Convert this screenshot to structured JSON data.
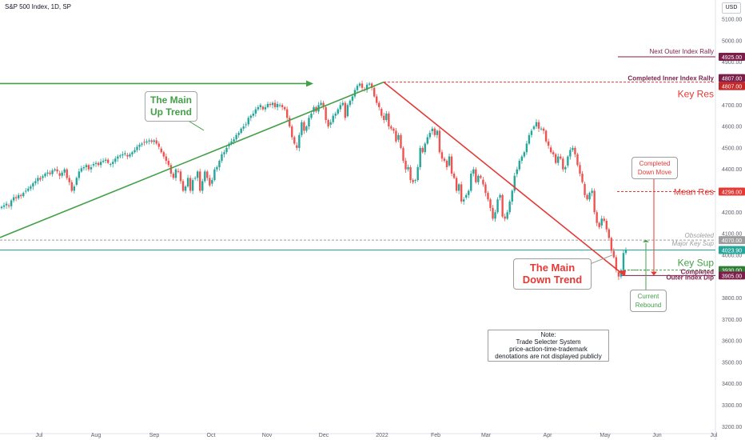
{
  "header": {
    "symbol_line": "S&P 500 Index, 1D, SP",
    "currency": "USD"
  },
  "callouts": {
    "main_up": "The Main\nUp Trend",
    "main_down": "The Main\nDown Trend",
    "completed_down": "Completed\nDown Move",
    "current_rebound": "Current\nRebound",
    "note": "Note:\nTrade Selecter System\nprice-action-time-trademark\ndenotations are not displayed publicly"
  },
  "chart_data": {
    "type": "candlestick",
    "x_tick_labels": [
      "Jul",
      "Aug",
      "Sep",
      "Oct",
      "Nov",
      "Dec",
      "2022",
      "Feb",
      "Mar",
      "Apr",
      "May",
      "Jun",
      "Jul"
    ],
    "y_ticks": [
      3200,
      3300,
      3400,
      3500,
      3600,
      3700,
      3800,
      3900,
      4000,
      4100,
      4200,
      4300,
      4400,
      4500,
      4600,
      4700,
      4800,
      4900,
      5000,
      5100
    ],
    "y_tick_labels": [
      "3200.00",
      "3300.00",
      "3400.00",
      "3500.00",
      "3600.00",
      "3700.00",
      "3800.00",
      "3900.00",
      "4000.00",
      "4100.00",
      "4200.00",
      "4300.00",
      "4400.00",
      "4500.00",
      "4600.00",
      "4700.00",
      "4800.00",
      "4900.00",
      "5000.00",
      "5100.00"
    ],
    "ylim": [
      3175,
      5145
    ],
    "colors": {
      "up": "#26a69a",
      "down": "#ef5350",
      "trend_up": "#43a047",
      "trend_down": "#e53935",
      "res": "#9c1f52",
      "sup": "#43a047"
    },
    "levels": [
      {
        "label": "Next Outer Index Rally",
        "value": 4925.0,
        "tag": "4925.00",
        "color": "#7b1f4a",
        "style": "solid"
      },
      {
        "label": "Completed Inner Index Rally",
        "value": 4807.0,
        "tag": "4807.00",
        "color": "#7b1f4a",
        "style": "dashed"
      },
      {
        "label": "Key Res",
        "value": 4807.0,
        "tag": "4807.00",
        "color": "#e53935",
        "style": "none"
      },
      {
        "label": "Mean Res",
        "value": 4296.0,
        "tag": "4296.00",
        "color": "#e53935",
        "style": "dashed"
      },
      {
        "label": "Obsoleted",
        "value": 4070.0,
        "tag": "4070.00",
        "color": "#9e9e9e",
        "style": "dashed"
      },
      {
        "label": "Major Key Sup",
        "value": 4070.0,
        "tag": "",
        "color": "#9e9e9e",
        "style": "none"
      },
      {
        "label": "",
        "value": 4023.9,
        "tag": "4023.90",
        "color": "#26a69a",
        "style": "solid"
      },
      {
        "label": "Key Sup",
        "value": 3930.0,
        "tag": "3930.00",
        "color": "#43a047",
        "style": "dashed"
      },
      {
        "label": "Completed",
        "value": 3930.0,
        "tag": "",
        "color": "#7b1f4a",
        "style": "none"
      },
      {
        "label": "Outer Index Dip",
        "value": 3905.0,
        "tag": "3905.00",
        "color": "#7b1f4a",
        "style": "solid"
      }
    ],
    "candles_close": [
      4225,
      4232,
      4240,
      4228,
      4255,
      4270,
      4265,
      4280,
      4275,
      4290,
      4300,
      4310,
      4320,
      4335,
      4345,
      4360,
      4352,
      4368,
      4380,
      4385,
      4378,
      4395,
      4400,
      4390,
      4370,
      4385,
      4400,
      4360,
      4340,
      4300,
      4320,
      4360,
      4390,
      4405,
      4410,
      4420,
      4400,
      4410,
      4425,
      4430,
      4420,
      4435,
      4440,
      4445,
      4430,
      4425,
      4435,
      4450,
      4460,
      4465,
      4470,
      4475,
      4460,
      4470,
      4480,
      4490,
      4505,
      4515,
      4520,
      4525,
      4530,
      4535,
      4528,
      4535,
      4520,
      4505,
      4480,
      4460,
      4440,
      4420,
      4380,
      4360,
      4400,
      4390,
      4345,
      4300,
      4320,
      4360,
      4300,
      4350,
      4360,
      4390,
      4300,
      4345,
      4390,
      4360,
      4325,
      4350,
      4400,
      4410,
      4440,
      4470,
      4480,
      4500,
      4520,
      4530,
      4540,
      4560,
      4570,
      4590,
      4600,
      4610,
      4640,
      4650,
      4660,
      4680,
      4690,
      4700,
      4680,
      4690,
      4705,
      4700,
      4710,
      4690,
      4705,
      4700,
      4690,
      4680,
      4640,
      4600,
      4550,
      4520,
      4500,
      4560,
      4620,
      4580,
      4600,
      4640,
      4660,
      4690,
      4670,
      4700,
      4710,
      4690,
      4630,
      4600,
      4620,
      4650,
      4660,
      4680,
      4700,
      4710,
      4640,
      4700,
      4720,
      4740,
      4770,
      4790,
      4800,
      4780,
      4770,
      4795,
      4800,
      4780,
      4740,
      4710,
      4690,
      4650,
      4630,
      4660,
      4600,
      4590,
      4580,
      4530,
      4560,
      4500,
      4440,
      4400,
      4410,
      4350,
      4340,
      4350,
      4410,
      4500,
      4480,
      4520,
      4550,
      4570,
      4590,
      4560,
      4580,
      4480,
      4450,
      4440,
      4410,
      4460,
      4380,
      4360,
      4300,
      4330,
      4250,
      4260,
      4280,
      4300,
      4380,
      4400,
      4340,
      4370,
      4360,
      4330,
      4290,
      4260,
      4220,
      4170,
      4200,
      4260,
      4280,
      4180,
      4170,
      4200,
      4250,
      4300,
      4370,
      4400,
      4440,
      4460,
      4480,
      4520,
      4560,
      4580,
      4600,
      4620,
      4590,
      4590,
      4580,
      4530,
      4510,
      4480,
      4470,
      4430,
      4460,
      4450,
      4400,
      4410,
      4460,
      4490,
      4500,
      4470,
      4420,
      4380,
      4340,
      4280,
      4260,
      4290,
      4300,
      4200,
      4150,
      4130,
      4170,
      4160,
      4120,
      4080,
      4020,
      3990,
      3930,
      3900,
      3930,
      4010,
      4023.9
    ]
  }
}
